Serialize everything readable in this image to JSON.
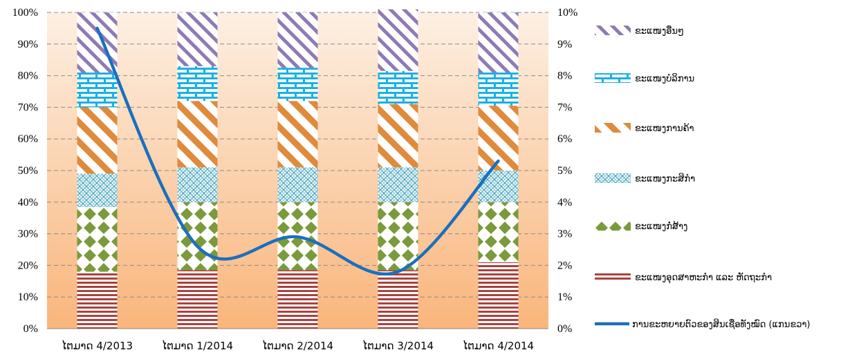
{
  "chart_data": {
    "type": "bar",
    "stacked": true,
    "categories": [
      "ໄຕມາດ 4/2013",
      "ໄຕມາດ 1/2014",
      "ໄຕມາດ 2/2014",
      "ໄຕມາດ 3/2014",
      "ໄຕມາດ 4/2014"
    ],
    "ylim": [
      0,
      100
    ],
    "y_ticks": [
      "0%",
      "10%",
      "20%",
      "30%",
      "40%",
      "50%",
      "60%",
      "70%",
      "80%",
      "90%",
      "100%"
    ],
    "y2lim": [
      0,
      10
    ],
    "y2_ticks": [
      "0%",
      "1%",
      "2%",
      "3%",
      "4%",
      "5%",
      "6%",
      "7%",
      "8%",
      "9%",
      "10%"
    ],
    "grid": true,
    "legend_position": "right",
    "series": [
      {
        "name": "ຂະແໜງອຸດສາຫະກຳ ແລະ ຫັດຖະກຳ",
        "pattern": "horizontal-stripes",
        "color": "#a9413d",
        "values": [
          18,
          18.5,
          18.5,
          18.5,
          21
        ]
      },
      {
        "name": "ຂະແໜງກໍ່ສ້າງ",
        "pattern": "diamonds",
        "color": "#7a9a3c",
        "values": [
          20.5,
          21.5,
          21.5,
          21.5,
          19
        ]
      },
      {
        "name": "ຂະແໜງກະສິກຳ",
        "pattern": "weave",
        "color": "#4aa5be",
        "values": [
          10.5,
          11,
          11,
          11,
          10
        ]
      },
      {
        "name": "ຂະແໜງການຄ້າ",
        "pattern": "diagonal-stripes",
        "color": "#e08a3c",
        "values": [
          21,
          21,
          21,
          20,
          20.5
        ]
      },
      {
        "name": "ຂະແໜງບໍລິການ",
        "pattern": "bricks",
        "color": "#19b1e6",
        "values": [
          11,
          11,
          10.5,
          10.5,
          10.5
        ]
      },
      {
        "name": "ຂະແໜງອື່ນໆ",
        "pattern": "diagonal-stripes-rev",
        "color": "#8e7ab5",
        "values": [
          19,
          17,
          17.5,
          19.5,
          19
        ]
      }
    ],
    "line_series": {
      "name": "ການຂະຫຍາຍຕົວຂອງສິນເຊື່ອທັງໝົດ (ແກນຂວາ)",
      "axis": "right",
      "color": "#1b6fbd",
      "values": [
        9.5,
        2.6,
        2.9,
        1.8,
        5.3
      ]
    }
  }
}
